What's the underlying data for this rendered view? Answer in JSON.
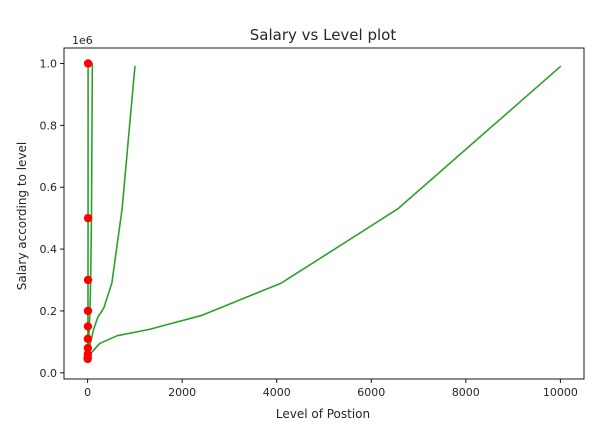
{
  "chart_data": {
    "type": "line",
    "title": "Salary vs Level plot",
    "xlabel": "Level of Postion",
    "ylabel": "Salary according to level",
    "y_offset_label": "1e6",
    "xlim": [
      -500,
      10500
    ],
    "ylim": [
      -0.02,
      1.05
    ],
    "x_ticks": [
      0,
      2000,
      4000,
      6000,
      8000,
      10000
    ],
    "x_tick_labels": [
      "0",
      "2000",
      "4000",
      "6000",
      "8000",
      "10000"
    ],
    "y_ticks": [
      0.0,
      0.2,
      0.4,
      0.6,
      0.8,
      1.0
    ],
    "y_tick_labels": [
      "0.0",
      "0.2",
      "0.4",
      "0.6",
      "0.8",
      "1.0"
    ],
    "grid": false,
    "series": [
      {
        "kind": "scatter",
        "color": "#ff0000",
        "x": [
          1,
          2,
          3,
          4,
          5,
          6,
          7,
          8,
          9,
          10
        ],
        "y": [
          0.045,
          0.05,
          0.06,
          0.08,
          0.11,
          0.15,
          0.2,
          0.3,
          0.5,
          1.0
        ]
      },
      {
        "kind": "line",
        "color": "#2ca02c",
        "x": [
          1,
          2,
          3,
          4,
          5,
          6,
          7,
          8,
          9,
          10
        ],
        "y": [
          0.045,
          0.05,
          0.06,
          0.08,
          0.11,
          0.15,
          0.2,
          0.3,
          0.5,
          1.0
        ]
      },
      {
        "kind": "line",
        "color": "#2ca02c",
        "x": [
          1,
          4,
          9,
          16,
          25,
          36,
          49,
          64,
          81,
          100
        ],
        "y": [
          0.045,
          0.05,
          0.06,
          0.08,
          0.11,
          0.15,
          0.2,
          0.3,
          0.5,
          1.0
        ]
      },
      {
        "kind": "line",
        "color": "#2ca02c",
        "x": [
          1,
          8,
          27,
          64,
          125,
          216,
          343,
          512,
          729,
          1000
        ],
        "y": [
          0.05,
          0.06,
          0.075,
          0.1,
          0.14,
          0.18,
          0.21,
          0.29,
          0.53,
          0.99
        ]
      },
      {
        "kind": "line",
        "color": "#2ca02c",
        "x": [
          1,
          16,
          81,
          256,
          625,
          1296,
          2401,
          4096,
          6561,
          10000
        ],
        "y": [
          0.045,
          0.055,
          0.065,
          0.095,
          0.12,
          0.14,
          0.185,
          0.29,
          0.53,
          0.99
        ]
      }
    ]
  }
}
